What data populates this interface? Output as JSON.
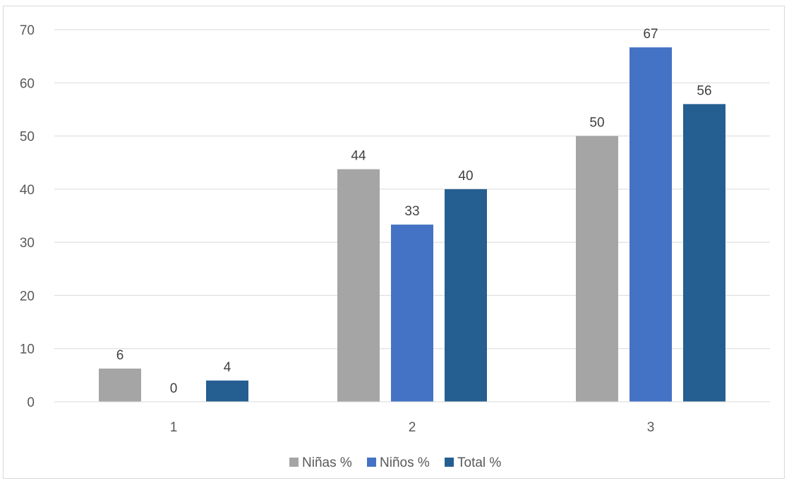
{
  "chart_data": {
    "type": "bar",
    "categories": [
      "1",
      "2",
      "3"
    ],
    "series": [
      {
        "name": "Niñas %",
        "color": "#a5a5a5",
        "values": [
          6.25,
          43.75,
          50
        ]
      },
      {
        "name": "Niños %",
        "color": "#4472c4",
        "values": [
          0,
          33.33,
          66.67
        ]
      },
      {
        "name": "Total %",
        "color": "#255e91",
        "values": [
          4,
          40,
          56
        ]
      }
    ],
    "data_labels": [
      [
        "6",
        "44",
        "50"
      ],
      [
        "0",
        "33",
        "67"
      ],
      [
        "4",
        "40",
        "56"
      ]
    ],
    "y_ticks": [
      "0",
      "10",
      "20",
      "30",
      "40",
      "50",
      "60",
      "70"
    ],
    "ylim": [
      0,
      70
    ],
    "grid": true,
    "legend_position": "bottom",
    "title": "",
    "xlabel": "",
    "ylabel": ""
  }
}
